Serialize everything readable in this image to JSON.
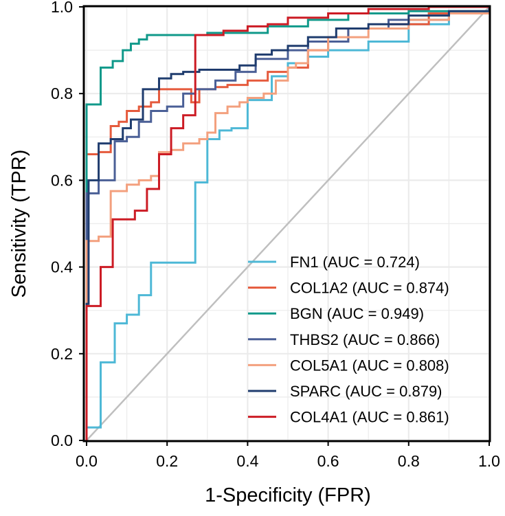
{
  "chart_data": {
    "type": "line",
    "title": "",
    "xlabel": "1-Specificity (FPR)",
    "ylabel": "Sensitivity (TPR)",
    "xlim": [
      0,
      1
    ],
    "ylim": [
      0,
      1
    ],
    "grid": true,
    "legend_position": "bottom-right",
    "x_ticks": [
      0.0,
      0.2,
      0.4,
      0.6,
      0.8,
      1.0
    ],
    "y_ticks": [
      0.0,
      0.2,
      0.4,
      0.6,
      0.8,
      1.0
    ],
    "x_tick_labels": [
      "0.0",
      "0.2",
      "0.4",
      "0.6",
      "0.8",
      "1.0"
    ],
    "y_tick_labels": [
      "0.0",
      "0.2",
      "0.4",
      "0.6",
      "0.8",
      "1.0"
    ],
    "reference_line": {
      "name": "chance-diagonal",
      "color": "#bfbfbf",
      "points": [
        [
          0,
          0
        ],
        [
          1,
          1
        ]
      ]
    },
    "series": [
      {
        "name": "FN1",
        "label": "FN1 (AUC = 0.724)",
        "auc": 0.724,
        "color": "#4db8d6",
        "points": [
          [
            0,
            0
          ],
          [
            0,
            0.03
          ],
          [
            0.035,
            0.03
          ],
          [
            0.035,
            0.18
          ],
          [
            0.07,
            0.18
          ],
          [
            0.07,
            0.27
          ],
          [
            0.1,
            0.27
          ],
          [
            0.1,
            0.29
          ],
          [
            0.13,
            0.29
          ],
          [
            0.13,
            0.335
          ],
          [
            0.16,
            0.335
          ],
          [
            0.16,
            0.41
          ],
          [
            0.27,
            0.41
          ],
          [
            0.27,
            0.595
          ],
          [
            0.3,
            0.595
          ],
          [
            0.3,
            0.695
          ],
          [
            0.33,
            0.695
          ],
          [
            0.33,
            0.715
          ],
          [
            0.36,
            0.715
          ],
          [
            0.36,
            0.72
          ],
          [
            0.4,
            0.72
          ],
          [
            0.4,
            0.785
          ],
          [
            0.46,
            0.785
          ],
          [
            0.46,
            0.84
          ],
          [
            0.5,
            0.84
          ],
          [
            0.5,
            0.87
          ],
          [
            0.55,
            0.87
          ],
          [
            0.55,
            0.885
          ],
          [
            0.6,
            0.885
          ],
          [
            0.6,
            0.9
          ],
          [
            0.7,
            0.9
          ],
          [
            0.7,
            0.92
          ],
          [
            0.8,
            0.92
          ],
          [
            0.8,
            0.96
          ],
          [
            0.9,
            0.96
          ],
          [
            0.9,
            0.985
          ],
          [
            1,
            0.985
          ],
          [
            1,
            1
          ]
        ]
      },
      {
        "name": "COL1A2",
        "label": "COL1A2 (AUC = 0.874)",
        "auc": 0.874,
        "color": "#e55a3c",
        "points": [
          [
            0,
            0
          ],
          [
            0,
            0.66
          ],
          [
            0.03,
            0.66
          ],
          [
            0.03,
            0.665
          ],
          [
            0.06,
            0.665
          ],
          [
            0.06,
            0.725
          ],
          [
            0.08,
            0.725
          ],
          [
            0.08,
            0.735
          ],
          [
            0.1,
            0.735
          ],
          [
            0.1,
            0.76
          ],
          [
            0.13,
            0.76
          ],
          [
            0.13,
            0.77
          ],
          [
            0.16,
            0.77
          ],
          [
            0.16,
            0.78
          ],
          [
            0.18,
            0.78
          ],
          [
            0.18,
            0.81
          ],
          [
            0.26,
            0.81
          ],
          [
            0.26,
            0.78
          ],
          [
            0.28,
            0.78
          ],
          [
            0.28,
            0.81
          ],
          [
            0.32,
            0.81
          ],
          [
            0.32,
            0.815
          ],
          [
            0.35,
            0.815
          ],
          [
            0.35,
            0.82
          ],
          [
            0.4,
            0.82
          ],
          [
            0.4,
            0.83
          ],
          [
            0.45,
            0.83
          ],
          [
            0.45,
            0.85
          ],
          [
            0.5,
            0.85
          ],
          [
            0.5,
            0.86
          ],
          [
            0.55,
            0.86
          ],
          [
            0.55,
            0.9
          ],
          [
            0.6,
            0.9
          ],
          [
            0.6,
            0.92
          ],
          [
            0.65,
            0.92
          ],
          [
            0.65,
            0.95
          ],
          [
            0.75,
            0.95
          ],
          [
            0.75,
            0.96
          ],
          [
            0.85,
            0.96
          ],
          [
            0.85,
            0.985
          ],
          [
            1,
            0.985
          ],
          [
            1,
            1
          ]
        ]
      },
      {
        "name": "BGN",
        "label": "BGN (AUC = 0.949)",
        "auc": 0.949,
        "color": "#10998a",
        "points": [
          [
            0,
            0
          ],
          [
            0,
            0.775
          ],
          [
            0.035,
            0.775
          ],
          [
            0.035,
            0.86
          ],
          [
            0.065,
            0.86
          ],
          [
            0.065,
            0.875
          ],
          [
            0.09,
            0.875
          ],
          [
            0.09,
            0.9
          ],
          [
            0.11,
            0.9
          ],
          [
            0.11,
            0.915
          ],
          [
            0.13,
            0.915
          ],
          [
            0.13,
            0.925
          ],
          [
            0.15,
            0.925
          ],
          [
            0.15,
            0.935
          ],
          [
            0.3,
            0.935
          ],
          [
            0.3,
            0.94
          ],
          [
            0.45,
            0.94
          ],
          [
            0.45,
            0.955
          ],
          [
            0.55,
            0.955
          ],
          [
            0.55,
            0.97
          ],
          [
            0.65,
            0.97
          ],
          [
            0.65,
            0.985
          ],
          [
            0.8,
            0.985
          ],
          [
            0.8,
            0.99
          ],
          [
            1,
            0.99
          ],
          [
            1,
            1
          ]
        ]
      },
      {
        "name": "THBS2",
        "label": "THBS2 (AUC = 0.866)",
        "auc": 0.866,
        "color": "#4a5f96",
        "points": [
          [
            0,
            0
          ],
          [
            0,
            0.57
          ],
          [
            0.03,
            0.57
          ],
          [
            0.03,
            0.6
          ],
          [
            0.07,
            0.6
          ],
          [
            0.07,
            0.69
          ],
          [
            0.1,
            0.69
          ],
          [
            0.1,
            0.7
          ],
          [
            0.13,
            0.7
          ],
          [
            0.13,
            0.735
          ],
          [
            0.16,
            0.735
          ],
          [
            0.16,
            0.76
          ],
          [
            0.2,
            0.76
          ],
          [
            0.2,
            0.77
          ],
          [
            0.24,
            0.77
          ],
          [
            0.24,
            0.8
          ],
          [
            0.27,
            0.8
          ],
          [
            0.27,
            0.81
          ],
          [
            0.32,
            0.81
          ],
          [
            0.32,
            0.83
          ],
          [
            0.37,
            0.83
          ],
          [
            0.37,
            0.85
          ],
          [
            0.42,
            0.85
          ],
          [
            0.42,
            0.88
          ],
          [
            0.5,
            0.88
          ],
          [
            0.5,
            0.9
          ],
          [
            0.55,
            0.9
          ],
          [
            0.55,
            0.92
          ],
          [
            0.65,
            0.92
          ],
          [
            0.65,
            0.95
          ],
          [
            0.75,
            0.95
          ],
          [
            0.75,
            0.97
          ],
          [
            0.9,
            0.97
          ],
          [
            0.9,
            0.985
          ],
          [
            1,
            0.985
          ],
          [
            1,
            1
          ]
        ]
      },
      {
        "name": "COL5A1",
        "label": "COL5A1 (AUC = 0.808)",
        "auc": 0.808,
        "color": "#f3a07e",
        "points": [
          [
            0,
            0
          ],
          [
            0,
            0.46
          ],
          [
            0.03,
            0.46
          ],
          [
            0.03,
            0.47
          ],
          [
            0.06,
            0.47
          ],
          [
            0.06,
            0.575
          ],
          [
            0.1,
            0.575
          ],
          [
            0.1,
            0.59
          ],
          [
            0.13,
            0.59
          ],
          [
            0.13,
            0.6
          ],
          [
            0.16,
            0.6
          ],
          [
            0.16,
            0.61
          ],
          [
            0.18,
            0.61
          ],
          [
            0.18,
            0.665
          ],
          [
            0.21,
            0.665
          ],
          [
            0.21,
            0.67
          ],
          [
            0.24,
            0.67
          ],
          [
            0.24,
            0.685
          ],
          [
            0.28,
            0.685
          ],
          [
            0.28,
            0.695
          ],
          [
            0.3,
            0.695
          ],
          [
            0.3,
            0.71
          ],
          [
            0.32,
            0.71
          ],
          [
            0.32,
            0.755
          ],
          [
            0.35,
            0.755
          ],
          [
            0.35,
            0.77
          ],
          [
            0.38,
            0.77
          ],
          [
            0.38,
            0.78
          ],
          [
            0.4,
            0.78
          ],
          [
            0.4,
            0.79
          ],
          [
            0.44,
            0.79
          ],
          [
            0.44,
            0.8
          ],
          [
            0.47,
            0.8
          ],
          [
            0.47,
            0.83
          ],
          [
            0.5,
            0.83
          ],
          [
            0.5,
            0.86
          ],
          [
            0.52,
            0.86
          ],
          [
            0.52,
            0.87
          ],
          [
            0.55,
            0.87
          ],
          [
            0.55,
            0.9
          ],
          [
            0.6,
            0.9
          ],
          [
            0.6,
            0.93
          ],
          [
            0.7,
            0.93
          ],
          [
            0.7,
            0.95
          ],
          [
            0.8,
            0.95
          ],
          [
            0.8,
            0.97
          ],
          [
            0.9,
            0.97
          ],
          [
            0.9,
            0.985
          ],
          [
            1,
            0.985
          ],
          [
            1,
            1
          ]
        ]
      },
      {
        "name": "SPARC",
        "label": "SPARC (AUC = 0.879)",
        "auc": 0.879,
        "color": "#1f3c6e",
        "points": [
          [
            0,
            0
          ],
          [
            0,
            0.315
          ],
          [
            0.005,
            0.315
          ],
          [
            0.005,
            0.6
          ],
          [
            0.03,
            0.6
          ],
          [
            0.03,
            0.685
          ],
          [
            0.06,
            0.685
          ],
          [
            0.06,
            0.695
          ],
          [
            0.09,
            0.695
          ],
          [
            0.09,
            0.72
          ],
          [
            0.11,
            0.72
          ],
          [
            0.11,
            0.74
          ],
          [
            0.14,
            0.74
          ],
          [
            0.14,
            0.81
          ],
          [
            0.18,
            0.81
          ],
          [
            0.18,
            0.835
          ],
          [
            0.21,
            0.835
          ],
          [
            0.21,
            0.845
          ],
          [
            0.24,
            0.845
          ],
          [
            0.24,
            0.85
          ],
          [
            0.28,
            0.85
          ],
          [
            0.28,
            0.855
          ],
          [
            0.3,
            0.855
          ],
          [
            0.3,
            0.855
          ],
          [
            0.38,
            0.855
          ],
          [
            0.38,
            0.865
          ],
          [
            0.42,
            0.865
          ],
          [
            0.42,
            0.89
          ],
          [
            0.46,
            0.89
          ],
          [
            0.46,
            0.9
          ],
          [
            0.5,
            0.9
          ],
          [
            0.5,
            0.91
          ],
          [
            0.55,
            0.91
          ],
          [
            0.55,
            0.93
          ],
          [
            0.62,
            0.93
          ],
          [
            0.62,
            0.95
          ],
          [
            0.7,
            0.95
          ],
          [
            0.7,
            0.96
          ],
          [
            0.8,
            0.96
          ],
          [
            0.8,
            0.98
          ],
          [
            0.9,
            0.98
          ],
          [
            0.9,
            0.99
          ],
          [
            1,
            0.99
          ],
          [
            1,
            1
          ]
        ]
      },
      {
        "name": "COL4A1",
        "label": "COL4A1 (AUC = 0.861)",
        "auc": 0.861,
        "color": "#cc1b24",
        "points": [
          [
            0,
            0
          ],
          [
            0,
            0.31
          ],
          [
            0.035,
            0.31
          ],
          [
            0.035,
            0.4
          ],
          [
            0.065,
            0.4
          ],
          [
            0.065,
            0.51
          ],
          [
            0.12,
            0.51
          ],
          [
            0.12,
            0.53
          ],
          [
            0.15,
            0.53
          ],
          [
            0.15,
            0.58
          ],
          [
            0.18,
            0.58
          ],
          [
            0.18,
            0.66
          ],
          [
            0.21,
            0.66
          ],
          [
            0.21,
            0.72
          ],
          [
            0.24,
            0.72
          ],
          [
            0.24,
            0.75
          ],
          [
            0.27,
            0.75
          ],
          [
            0.27,
            0.935
          ],
          [
            0.34,
            0.935
          ],
          [
            0.34,
            0.945
          ],
          [
            0.4,
            0.945
          ],
          [
            0.4,
            0.955
          ],
          [
            0.45,
            0.955
          ],
          [
            0.45,
            0.96
          ],
          [
            0.5,
            0.96
          ],
          [
            0.5,
            0.975
          ],
          [
            0.6,
            0.975
          ],
          [
            0.6,
            0.985
          ],
          [
            0.7,
            0.985
          ],
          [
            0.7,
            0.995
          ],
          [
            0.85,
            0.995
          ],
          [
            0.85,
            1
          ],
          [
            1,
            1
          ]
        ]
      }
    ]
  }
}
